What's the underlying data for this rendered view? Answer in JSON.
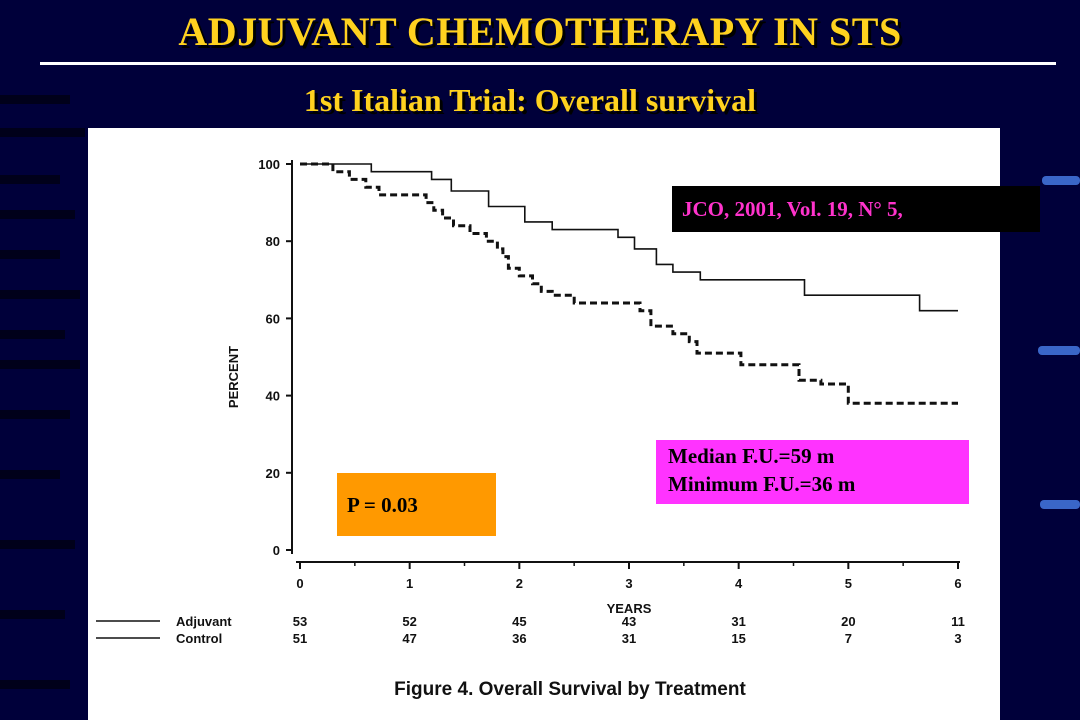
{
  "slide": {
    "title": "ADJUVANT CHEMOTHERAPY IN STS",
    "subtitle": "1st Italian Trial: Overall survival"
  },
  "colors": {
    "background": "#00003a",
    "title": "#ffd21f",
    "citation_text": "#ff33cc",
    "pvalue_box": "#ff9900",
    "followup_box": "#ff33ff"
  },
  "citation": "JCO, 2001, Vol. 19, N° 5,",
  "pvalue": "P = 0.03",
  "followup": {
    "line1": "Median F.U.=59 m",
    "line2": "Minimum F.U.=36 m"
  },
  "chart_data": {
    "type": "line",
    "xlabel": "YEARS",
    "ylabel": "PERCENT",
    "xlim": [
      0,
      6
    ],
    "ylim": [
      0,
      100
    ],
    "xticks": [
      0,
      1,
      2,
      3,
      4,
      5,
      6
    ],
    "yticks": [
      0,
      20,
      40,
      60,
      80,
      100
    ],
    "grid": false,
    "caption": "Figure 4. Overall Survival by Treatment",
    "series": [
      {
        "name": "Adjuvant",
        "style": "solid",
        "points": [
          [
            0,
            100
          ],
          [
            0.65,
            100
          ],
          [
            0.65,
            98
          ],
          [
            1.2,
            98
          ],
          [
            1.2,
            96
          ],
          [
            1.38,
            96
          ],
          [
            1.38,
            93
          ],
          [
            1.72,
            93
          ],
          [
            1.72,
            89
          ],
          [
            2.05,
            89
          ],
          [
            2.05,
            85
          ],
          [
            2.3,
            85
          ],
          [
            2.3,
            83
          ],
          [
            2.9,
            83
          ],
          [
            2.9,
            81
          ],
          [
            3.05,
            81
          ],
          [
            3.05,
            78
          ],
          [
            3.25,
            78
          ],
          [
            3.25,
            74
          ],
          [
            3.4,
            74
          ],
          [
            3.4,
            72
          ],
          [
            3.65,
            72
          ],
          [
            3.65,
            70
          ],
          [
            4.6,
            70
          ],
          [
            4.6,
            66
          ],
          [
            5.65,
            66
          ],
          [
            5.65,
            62
          ],
          [
            6.0,
            62
          ]
        ]
      },
      {
        "name": "Control",
        "style": "dashed",
        "points": [
          [
            0,
            100
          ],
          [
            0.3,
            100
          ],
          [
            0.3,
            98
          ],
          [
            0.45,
            98
          ],
          [
            0.45,
            96
          ],
          [
            0.6,
            96
          ],
          [
            0.6,
            94
          ],
          [
            0.72,
            94
          ],
          [
            0.72,
            92
          ],
          [
            1.15,
            92
          ],
          [
            1.15,
            90
          ],
          [
            1.22,
            90
          ],
          [
            1.22,
            88
          ],
          [
            1.3,
            88
          ],
          [
            1.3,
            86
          ],
          [
            1.4,
            86
          ],
          [
            1.4,
            84
          ],
          [
            1.55,
            84
          ],
          [
            1.55,
            82
          ],
          [
            1.7,
            82
          ],
          [
            1.7,
            80
          ],
          [
            1.8,
            80
          ],
          [
            1.8,
            78
          ],
          [
            1.85,
            78
          ],
          [
            1.85,
            76
          ],
          [
            1.9,
            76
          ],
          [
            1.9,
            73
          ],
          [
            2.0,
            73
          ],
          [
            2.0,
            71
          ],
          [
            2.12,
            71
          ],
          [
            2.12,
            69
          ],
          [
            2.2,
            69
          ],
          [
            2.2,
            67
          ],
          [
            2.3,
            67
          ],
          [
            2.3,
            66
          ],
          [
            2.5,
            66
          ],
          [
            2.5,
            64
          ],
          [
            3.1,
            64
          ],
          [
            3.1,
            62
          ],
          [
            3.2,
            62
          ],
          [
            3.2,
            58
          ],
          [
            3.4,
            58
          ],
          [
            3.4,
            56
          ],
          [
            3.55,
            56
          ],
          [
            3.55,
            54
          ],
          [
            3.62,
            54
          ],
          [
            3.62,
            51
          ],
          [
            4.02,
            51
          ],
          [
            4.02,
            48
          ],
          [
            4.55,
            48
          ],
          [
            4.55,
            44
          ],
          [
            4.75,
            44
          ],
          [
            4.75,
            43
          ],
          [
            5.0,
            43
          ],
          [
            5.0,
            38
          ],
          [
            6.0,
            38
          ]
        ]
      }
    ],
    "at_risk": {
      "times": [
        0,
        1,
        2,
        3,
        4,
        5,
        6
      ],
      "rows": [
        {
          "name": "Adjuvant",
          "values": [
            53,
            52,
            45,
            43,
            31,
            20,
            11
          ]
        },
        {
          "name": "Control",
          "values": [
            51,
            47,
            36,
            31,
            15,
            7,
            3
          ]
        }
      ]
    }
  }
}
